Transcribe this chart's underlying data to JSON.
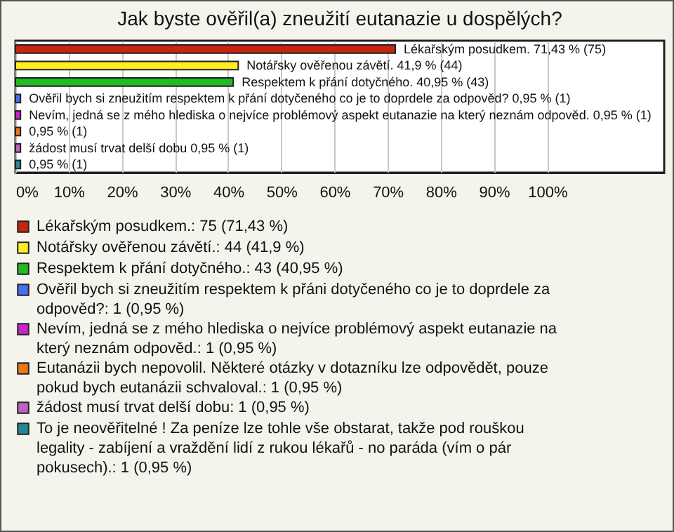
{
  "chart_data": {
    "type": "bar",
    "orientation": "horizontal",
    "title": "Jak byste ověřil(a) zneužití eutanazie u dospělých?",
    "categories": [
      null,
      null,
      null,
      null,
      null,
      null,
      null,
      null
    ],
    "series": [
      {
        "name": "Lékařským posudkem.: 75 (71,43 %)",
        "color": "#c8250f",
        "values": [
          71.43,
          null,
          null,
          null,
          null,
          null,
          null,
          null
        ],
        "value_labels": [
          "Lékařským posudkem. 71,43 % (75)",
          null,
          null,
          null,
          null,
          null,
          null,
          null
        ]
      },
      {
        "name": "Notářsky ověřenou závětí.: 44 (41,9 %)",
        "color": "#ffee22",
        "values": [
          null,
          41.9,
          null,
          null,
          null,
          null,
          null,
          null
        ],
        "value_labels": [
          null,
          "Notářsky ověřenou závětí. 41,9 % (44)",
          null,
          null,
          null,
          null,
          null,
          null
        ]
      },
      {
        "name": "Respektem k přání dotyčného.: 43 (40,95 %)",
        "color": "#22bb22",
        "values": [
          null,
          null,
          40.95,
          null,
          null,
          null,
          null,
          null
        ],
        "value_labels": [
          null,
          null,
          "Respektem k přání dotyčného. 40,95 % (43)",
          null,
          null,
          null,
          null,
          null
        ]
      },
      {
        "name": "Ověřil bych si zneužitím respektem k přáni dotyčeného co je to doprdele za odpověd?: 1 (0,95 %)",
        "color": "#4a6ef0",
        "values": [
          null,
          null,
          null,
          0.95,
          null,
          null,
          null,
          null
        ],
        "value_labels": [
          null,
          null,
          null,
          "Ověřil bych si zneužitím respektem k přání dotyčeného co je to doprdele za odpověd? 0,95 % (1)",
          null,
          null,
          null,
          null
        ]
      },
      {
        "name": "Nevím, jedná se z mého hlediska o nejvíce problémový aspekt eutanazie na který neznám odpověd.: 1 (0,95 %)",
        "color": "#cc22cc",
        "values": [
          null,
          null,
          null,
          null,
          0.95,
          null,
          null,
          null
        ],
        "value_labels": [
          null,
          null,
          null,
          null,
          "Nevím, jedná se z mého hlediska o nejvíce problémový aspekt eutanazie na který neznám odpověd. 0,95 % (1)",
          null,
          null,
          null
        ]
      },
      {
        "name": "Eutanázii bych nepovolil. Některé otázky v dotazníku lze odpovědět, pouze pokud bych eutanázii schvaloval.: 1 (0,95 %)",
        "color": "#e87a10",
        "values": [
          null,
          null,
          null,
          null,
          null,
          0.95,
          null,
          null
        ],
        "value_labels": [
          null,
          null,
          null,
          null,
          null,
          "0,95 % (1)",
          null,
          null
        ]
      },
      {
        "name": "žádost musí trvat delší dobu: 1 (0,95 %)",
        "color": "#c060c0",
        "values": [
          null,
          null,
          null,
          null,
          null,
          null,
          0.95,
          null
        ],
        "value_labels": [
          null,
          null,
          null,
          null,
          null,
          null,
          "žádost musí trvat delší dobu 0,95 % (1)",
          null
        ]
      },
      {
        "name": "To je neověřitelné ! Za peníze lze tohle vše obstarat, takže pod rouškou legality - zabíjení a vraždění lidí z rukou lékařů - no paráda (vím o pár pokusech).: 1 (0,95 %)",
        "color": "#228899",
        "values": [
          null,
          null,
          null,
          null,
          null,
          null,
          null,
          0.95
        ],
        "value_labels": [
          null,
          null,
          null,
          null,
          null,
          null,
          null,
          "0,95 % (1)"
        ]
      }
    ],
    "xlim": [
      0,
      122
    ],
    "xticks": [
      {
        "value": 0,
        "label": "0%"
      },
      {
        "value": 10,
        "label": "10%"
      },
      {
        "value": 20,
        "label": "20%"
      },
      {
        "value": 30,
        "label": "30%"
      },
      {
        "value": 40,
        "label": "40%"
      },
      {
        "value": 50,
        "label": "50%"
      },
      {
        "value": 60,
        "label": "60%"
      },
      {
        "value": 70,
        "label": "70%"
      },
      {
        "value": 80,
        "label": "80%"
      },
      {
        "value": 90,
        "label": "90%"
      },
      {
        "value": 100,
        "label": "100%"
      }
    ],
    "grid": "x",
    "legend": "bottom",
    "tick_labels": "x"
  }
}
